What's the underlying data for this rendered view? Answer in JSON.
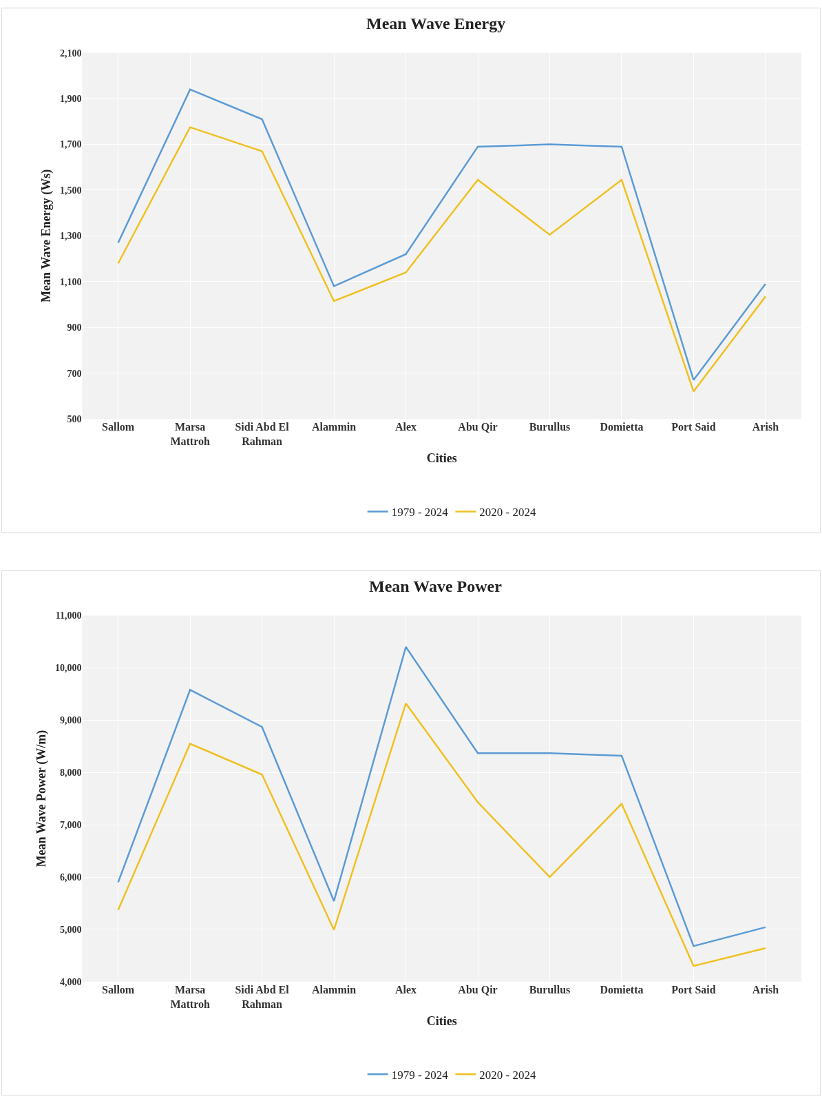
{
  "chart_data": [
    {
      "type": "line",
      "title": "Mean Wave Energy",
      "xlabel": "Cities",
      "ylabel": "Mean Wave Energy (Ws)",
      "categories": [
        "Sallom",
        "Marsa\nMattroh",
        "Sidi Abd El\nRahman",
        "Alammin",
        "Alex",
        "Abu Qir",
        "Burullus",
        "Domietta",
        "Port Said",
        "Arish"
      ],
      "series": [
        {
          "name": "1979 - 2024",
          "color": "#5b9bd5",
          "values": [
            1270,
            1940,
            1810,
            1080,
            1220,
            1690,
            1700,
            1690,
            670,
            1090
          ]
        },
        {
          "name": "2020 - 2024",
          "color": "#f0c020",
          "values": [
            1180,
            1775,
            1670,
            1015,
            1140,
            1545,
            1305,
            1545,
            620,
            1035
          ]
        }
      ],
      "ylim": [
        500,
        2100
      ],
      "yticks": [
        {
          "value": 500,
          "label": "500"
        },
        {
          "value": 700,
          "label": "700"
        },
        {
          "value": 900,
          "label": "900"
        },
        {
          "value": 1100,
          "label": "1,100"
        },
        {
          "value": 1300,
          "label": "1,300"
        },
        {
          "value": 1500,
          "label": "1,500"
        },
        {
          "value": 1700,
          "label": "1,700"
        },
        {
          "value": 1900,
          "label": "1,900"
        },
        {
          "value": 2100,
          "label": "2,100"
        }
      ],
      "grid": true,
      "legend": "bottom"
    },
    {
      "type": "line",
      "title": "Mean Wave Power",
      "xlabel": "Cities",
      "ylabel": "Mean Wave Power (W/m)",
      "categories": [
        "Sallom",
        "Marsa\nMattroh",
        "Sidi Abd El\nRahman",
        "Alammin",
        "Alex",
        "Abu Qir",
        "Burullus",
        "Domietta",
        "Port Said",
        "Arish"
      ],
      "series": [
        {
          "name": "1979 - 2024",
          "color": "#5b9bd5",
          "values": [
            5900,
            9580,
            8870,
            5540,
            10400,
            8370,
            8370,
            8320,
            4680,
            5040
          ]
        },
        {
          "name": "2020 - 2024",
          "color": "#f0c020",
          "values": [
            5370,
            8550,
            7960,
            4990,
            9320,
            7430,
            6000,
            7400,
            4300,
            4640
          ]
        }
      ],
      "ylim": [
        4000,
        11000
      ],
      "yticks": [
        {
          "value": 4000,
          "label": "4,000"
        },
        {
          "value": 5000,
          "label": "5,000"
        },
        {
          "value": 6000,
          "label": "6,000"
        },
        {
          "value": 7000,
          "label": "7,000"
        },
        {
          "value": 8000,
          "label": "8,000"
        },
        {
          "value": 9000,
          "label": "9,000"
        },
        {
          "value": 10000,
          "label": "10,000"
        },
        {
          "value": 11000,
          "label": "11,000"
        }
      ],
      "grid": true,
      "legend": "bottom"
    }
  ]
}
